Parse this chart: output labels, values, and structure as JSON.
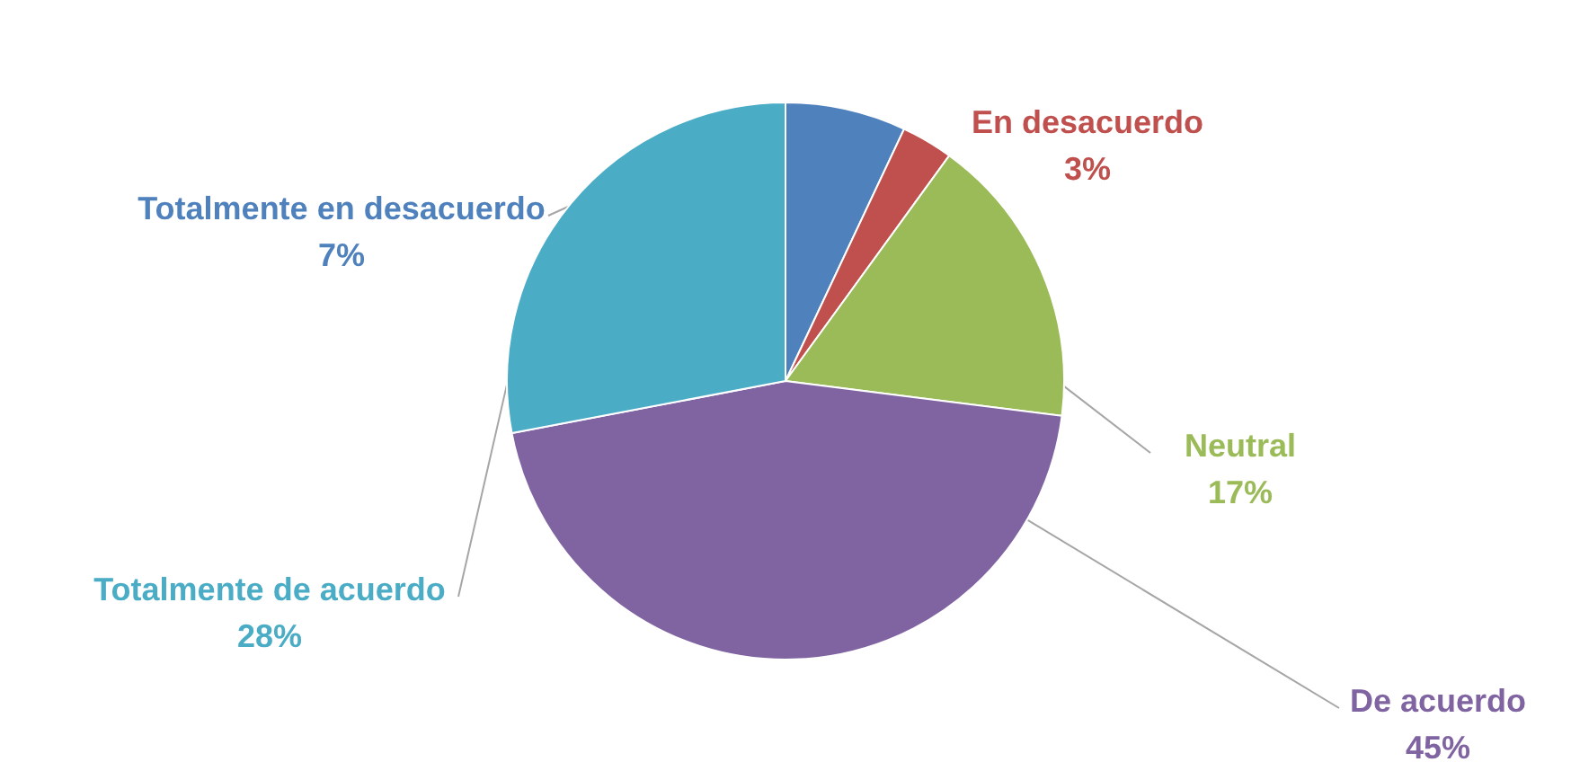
{
  "chart_data": {
    "type": "pie",
    "categories": [
      "Totalmente en desacuerdo",
      "En desacuerdo",
      "Neutral",
      "De acuerdo",
      "Totalmente de acuerdo"
    ],
    "values": [
      7,
      3,
      17,
      45,
      28
    ],
    "value_labels": [
      "7%",
      "3%",
      "17%",
      "45%",
      "28%"
    ],
    "colors": [
      "#4f81bd",
      "#c0504d",
      "#9bbb59",
      "#8064a2",
      "#4bacc6"
    ]
  }
}
